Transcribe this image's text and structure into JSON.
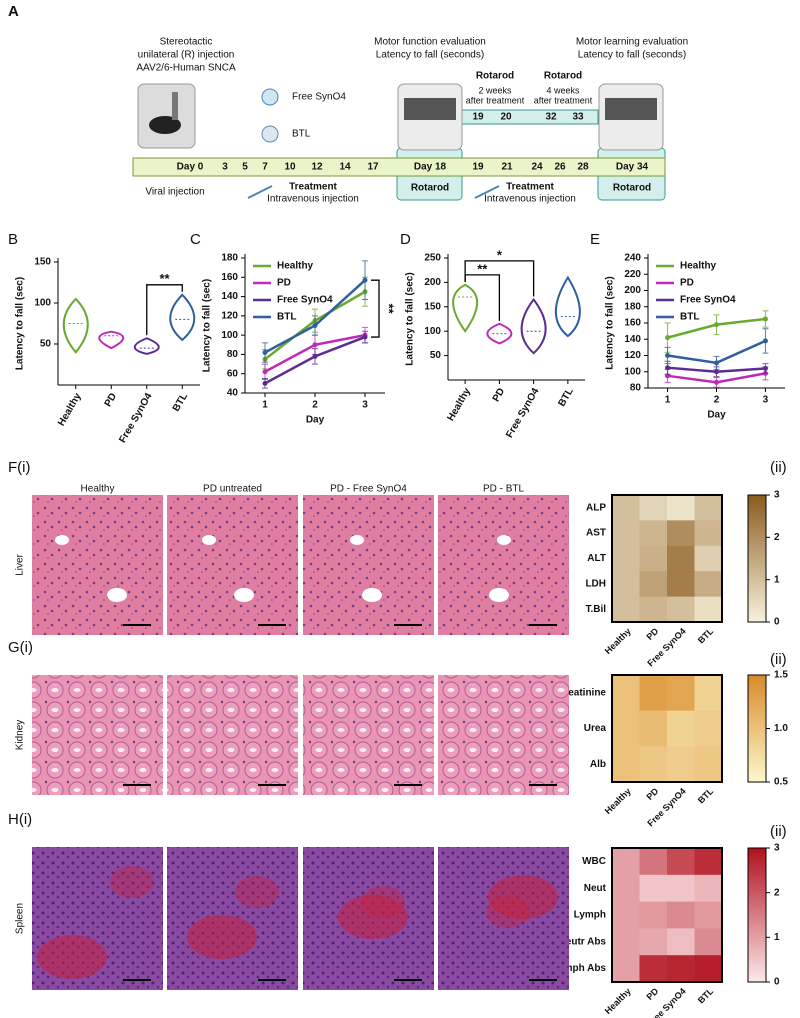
{
  "panel_a": {
    "label": "A",
    "injection": [
      "Stereotactic",
      "unilateral (R) injection",
      "AAV2/6-Human SNCA"
    ],
    "treatments": [
      "Free SynO4",
      "BTL"
    ],
    "motor_function": [
      "Motor function evaluation",
      "Latency to fall (seconds)"
    ],
    "motor_learning": [
      "Motor learning evaluation",
      "Latency to fall (seconds)"
    ],
    "rotarod_2wk": {
      "title": "Rotarod",
      "note": [
        "2 weeks",
        "after treatment"
      ],
      "days": [
        "19",
        "20"
      ]
    },
    "rotarod_4wk": {
      "title": "Rotarod",
      "note": [
        "4 weeks",
        "after treatment"
      ],
      "days": [
        "32",
        "33"
      ]
    },
    "days": [
      "Day 0",
      "3",
      "5",
      "7",
      "10",
      "12",
      "14",
      "17",
      "Day 18",
      "19",
      "21",
      "24",
      "26",
      "28",
      "Day 34"
    ],
    "viral": "Viral injection",
    "treatment_1": {
      "title": "Treatment",
      "route": "Intravenous injection"
    },
    "treatment_2": {
      "title": "Treatment",
      "route": "Intravenous injection"
    },
    "rotarod_boxes": [
      "Rotarod",
      "Rotarod"
    ]
  },
  "chart_data": [
    {
      "type": "violin",
      "panel": "B",
      "ylabel": "Latency to fall (sec)",
      "categories": [
        "Healthy",
        "PD",
        "Free SynO4",
        "BTL"
      ],
      "colors": [
        "#6aa82e",
        "#c028b8",
        "#5c2d91",
        "#2f5f9e"
      ],
      "min": [
        40,
        45,
        38,
        55
      ],
      "max": [
        105,
        65,
        57,
        110
      ],
      "median": [
        75,
        60,
        45,
        80
      ],
      "ylim": [
        0,
        150
      ],
      "yticks": [
        50,
        100,
        150
      ],
      "annotations": [
        {
          "text": "**",
          "between": [
            "Free SynO4",
            "BTL"
          ]
        }
      ]
    },
    {
      "type": "line",
      "panel": "C",
      "ylabel": "Latency to fall (sec)",
      "xlabel": "Day",
      "x": [
        1,
        2,
        3
      ],
      "xlim": [
        0.6,
        3.4
      ],
      "xticks": [
        1,
        2,
        3
      ],
      "ylim": [
        40,
        180
      ],
      "yticks": [
        40,
        60,
        80,
        100,
        120,
        140,
        160,
        180
      ],
      "series": [
        {
          "name": "Healthy",
          "color": "#6aa82e",
          "values": [
            75,
            115,
            145
          ],
          "errors": [
            10,
            12,
            15
          ]
        },
        {
          "name": "PD",
          "color": "#c028b8",
          "values": [
            62,
            90,
            100
          ],
          "errors": [
            8,
            10,
            8
          ]
        },
        {
          "name": "Free SynO4",
          "color": "#5c2d91",
          "values": [
            50,
            78,
            98
          ],
          "errors": [
            5,
            8,
            6
          ]
        },
        {
          "name": "BTL",
          "color": "#2f5f9e",
          "values": [
            82,
            110,
            157
          ],
          "errors": [
            10,
            10,
            20
          ]
        }
      ],
      "annotations": [
        {
          "text": "**",
          "between": [
            "BTL",
            "Free SynO4"
          ]
        }
      ]
    },
    {
      "type": "violin",
      "panel": "D",
      "ylabel": "Latency to fall (sec)",
      "categories": [
        "Healthy",
        "PD",
        "Free SynO4",
        "BTL"
      ],
      "colors": [
        "#6aa82e",
        "#c028b8",
        "#5c2d91",
        "#2f5f9e"
      ],
      "min": [
        100,
        75,
        55,
        90
      ],
      "max": [
        195,
        115,
        165,
        210
      ],
      "median": [
        170,
        95,
        100,
        130
      ],
      "ylim": [
        0,
        250
      ],
      "yticks": [
        50,
        100,
        150,
        200,
        250
      ],
      "annotations": [
        {
          "text": "**",
          "between": [
            "Healthy",
            "PD"
          ]
        },
        {
          "text": "*",
          "between": [
            "Healthy",
            "Free SynO4"
          ]
        }
      ]
    },
    {
      "type": "line",
      "panel": "E",
      "ylabel": "Latency to fall (sec)",
      "xlabel": "Day",
      "x": [
        1,
        2,
        3
      ],
      "xlim": [
        0.6,
        3.4
      ],
      "xticks": [
        1,
        2,
        3
      ],
      "ylim": [
        80,
        240
      ],
      "yticks": [
        80,
        100,
        120,
        140,
        160,
        180,
        200,
        220,
        240
      ],
      "series": [
        {
          "name": "Healthy",
          "color": "#6aa82e",
          "values": [
            142,
            158,
            165
          ],
          "errors": [
            18,
            12,
            10
          ]
        },
        {
          "name": "PD",
          "color": "#c028b8",
          "values": [
            95,
            87,
            98
          ],
          "errors": [
            8,
            6,
            8
          ]
        },
        {
          "name": "Free SynO4",
          "color": "#5c2d91",
          "values": [
            105,
            100,
            104
          ],
          "errors": [
            8,
            6,
            6
          ]
        },
        {
          "name": "BTL",
          "color": "#2f5f9e",
          "values": [
            120,
            111,
            138
          ],
          "errors": [
            10,
            8,
            15
          ]
        }
      ]
    },
    {
      "type": "heatmap",
      "panel": "(ii)",
      "rows": [
        "ALP",
        "AST",
        "ALT",
        "LDH",
        "T.Bil"
      ],
      "columns": [
        "Healthy",
        "PD",
        "Free SynO4",
        "BTL"
      ],
      "values": [
        [
          1.0,
          0.6,
          0.3,
          1.0
        ],
        [
          1.0,
          1.2,
          2.0,
          1.2
        ],
        [
          1.0,
          1.3,
          2.3,
          0.7
        ],
        [
          1.0,
          1.6,
          2.3,
          1.4
        ],
        [
          1.0,
          1.2,
          1.0,
          0.4
        ]
      ],
      "zlim": [
        0,
        3
      ],
      "zticks": [
        0,
        1,
        2,
        3
      ],
      "colors": [
        "#f8f2dc",
        "#8c5a1e"
      ]
    },
    {
      "type": "heatmap",
      "panel": "(ii)",
      "rows": [
        "Creatinine",
        "Urea",
        "Alb"
      ],
      "columns": [
        "Healthy",
        "PD",
        "Free SynO4",
        "BTL"
      ],
      "values": [
        [
          1.0,
          1.3,
          1.25,
          0.85
        ],
        [
          1.0,
          1.05,
          0.85,
          0.9
        ],
        [
          1.0,
          0.95,
          0.9,
          0.95
        ]
      ],
      "zlim": [
        0.5,
        1.5
      ],
      "zticks": [
        0.5,
        {
          "value": 1,
          "label": "1.0"
        },
        1.5
      ],
      "colors": [
        "#fdf8cc",
        "#d98a2a"
      ]
    },
    {
      "type": "heatmap",
      "panel": "(ii)",
      "rows": [
        "WBC",
        "Neut",
        "Lymph",
        "Neutr Abs",
        "Lymph Abs"
      ],
      "columns": [
        "Healthy",
        "PD",
        "Free SynO4",
        "BTL"
      ],
      "values": [
        [
          1.0,
          1.6,
          2.2,
          2.6
        ],
        [
          1.0,
          0.5,
          0.5,
          0.7
        ],
        [
          1.0,
          1.1,
          1.3,
          1.1
        ],
        [
          1.0,
          0.9,
          0.6,
          1.3
        ],
        [
          1.0,
          2.6,
          2.7,
          2.8
        ]
      ],
      "zlim": [
        0,
        3
      ],
      "zticks": [
        0,
        1,
        2,
        3
      ],
      "colors": [
        "#fde8ea",
        "#b0101e"
      ]
    }
  ],
  "histology": {
    "row_labels": [
      "F(i)",
      "G(i)",
      "H(i)"
    ],
    "columns": [
      "Healthy",
      "PD untreated",
      "PD - Free SynO4",
      "PD - BTL"
    ],
    "tissues": [
      "Liver",
      "Kidney",
      "Spleen"
    ]
  }
}
